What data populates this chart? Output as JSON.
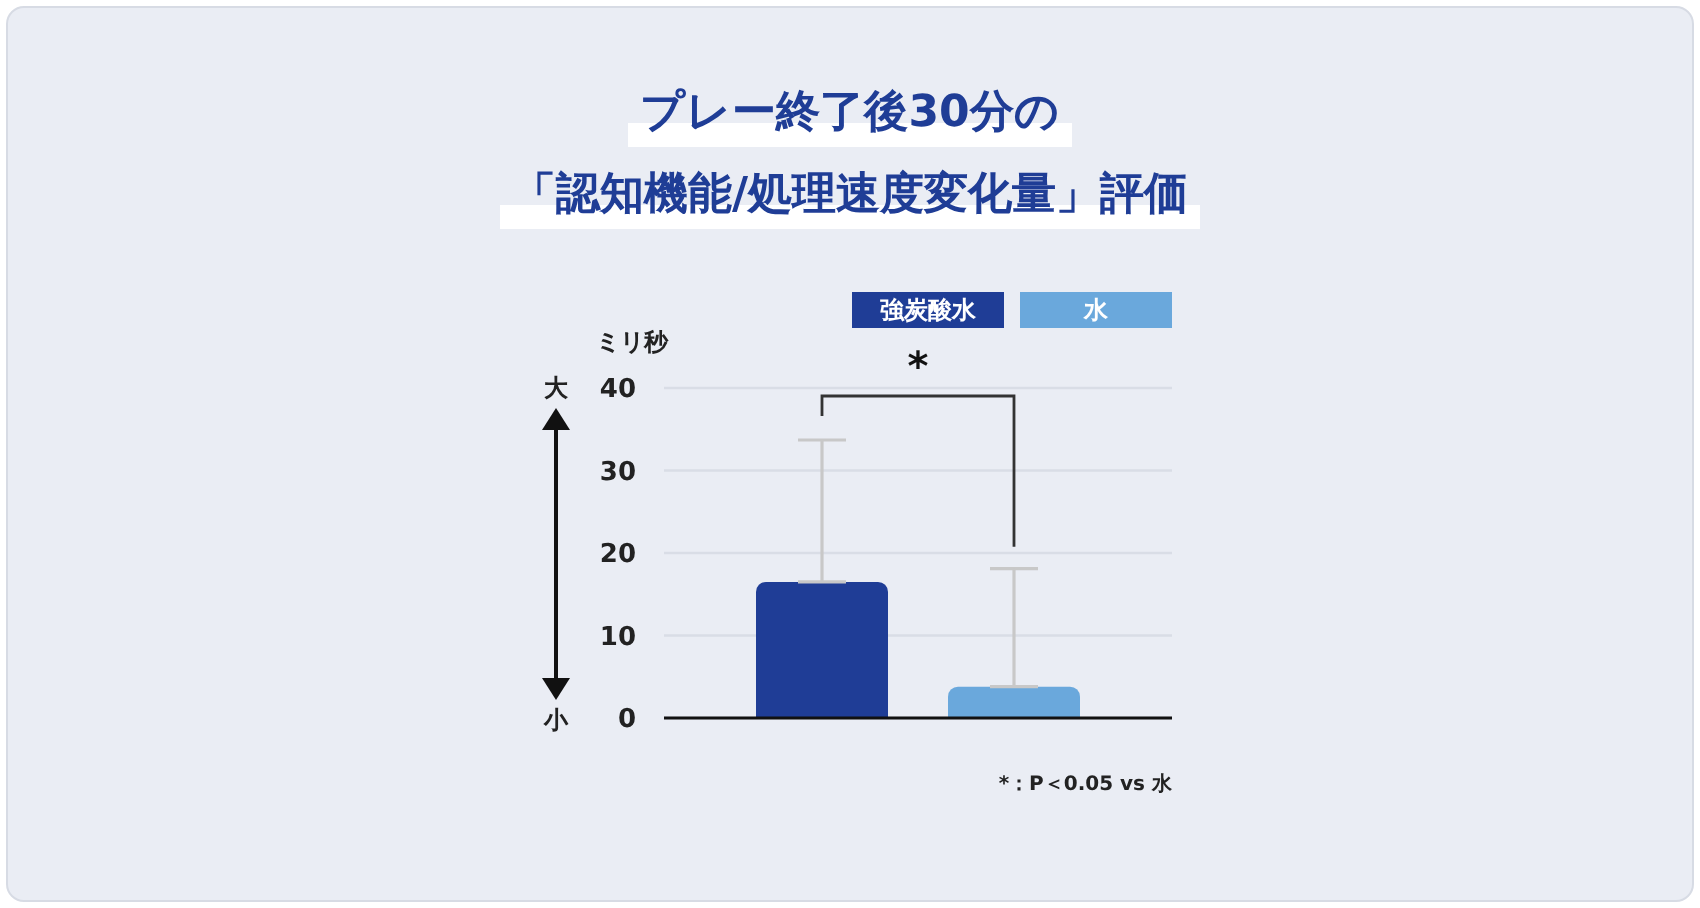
{
  "chart_data": {
    "type": "bar",
    "title": "プレー終了後30分の「認知機能/処理速度変化量」評価",
    "ylabel": "ミリ秒",
    "categories": [
      null
    ],
    "series": [
      {
        "name": "強炭酸水",
        "color": "#1f3d96",
        "values": [
          16.5
        ],
        "errors": [
          [
            16.5,
            33.7
          ]
        ]
      },
      {
        "name": "水",
        "color": "#6aa8dc",
        "values": [
          3.8
        ],
        "errors": [
          [
            3.8,
            18.1
          ]
        ]
      }
    ],
    "ylim": [
      0,
      40
    ],
    "yticks": [
      0,
      10,
      20,
      30,
      40
    ],
    "grid": "y",
    "legend": "top right",
    "tick_labels": "y",
    "annotations": [
      "大",
      "小",
      "*",
      "*：P＜0.05 vs 水"
    ]
  }
}
